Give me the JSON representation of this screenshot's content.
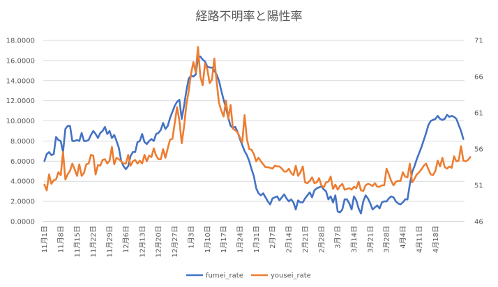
{
  "chart_data": {
    "type": "line",
    "title": "経路不明率と陽性率",
    "left_axis": {
      "min": 0,
      "max": 18,
      "step": 2,
      "tick_labels": [
        "0.0000",
        "2.0000",
        "4.0000",
        "6.0000",
        "8.0000",
        "10.0000",
        "12.0000",
        "14.0000",
        "16.0000",
        "18.0000"
      ]
    },
    "right_axis": {
      "min": 46,
      "max": 71,
      "step": 5,
      "tick_labels": [
        "46",
        "51",
        "56",
        "61",
        "66",
        "71"
      ]
    },
    "x_tick_labels": [
      "11月1日",
      "11月8日",
      "11月15日",
      "11月22日",
      "11月29日",
      "12月6日",
      "12月13日",
      "12月20日",
      "12月27日",
      "1月3日",
      "1月10日",
      "1月17日",
      "1月24日",
      "1月31日",
      "2月7日",
      "2月14日",
      "2月21日",
      "2月28日",
      "3月7日",
      "3月14日",
      "3月21日",
      "3月28日",
      "4月4日",
      "4月11日",
      "4月18日"
    ],
    "grid": true,
    "legend_position": "bottom",
    "series": [
      {
        "name": "fumei_rate",
        "axis": "left",
        "color": "#4472C4",
        "values": [
          6.0,
          6.7,
          6.9,
          6.6,
          6.7,
          8.4,
          8.1,
          8.0,
          6.9,
          9.2,
          9.5,
          9.5,
          8.0,
          8.0,
          8.1,
          8.0,
          8.8,
          8.0,
          8.0,
          8.1,
          8.6,
          9.0,
          8.7,
          8.3,
          8.8,
          9.0,
          9.4,
          8.7,
          9.0,
          8.3,
          8.6,
          8.0,
          7.3,
          6.0,
          5.5,
          5.2,
          5.5,
          6.5,
          6.9,
          6.9,
          7.9,
          8.0,
          8.7,
          7.9,
          7.7,
          8.0,
          8.2,
          8.0,
          8.7,
          8.8,
          9.1,
          9.8,
          9.2,
          9.5,
          10.3,
          10.9,
          11.5,
          11.9,
          12.1,
          10.2,
          11.5,
          13.0,
          14.2,
          14.5,
          14.4,
          14.6,
          16.3,
          16.4,
          16.1,
          15.9,
          15.4,
          15.3,
          15.3,
          15.0,
          14.6,
          14.0,
          13.0,
          12.1,
          11.3,
          10.3,
          9.5,
          9.3,
          9.4,
          8.9,
          8.2,
          7.6,
          7.0,
          6.6,
          6.0,
          5.2,
          4.5,
          3.3,
          2.8,
          2.6,
          2.8,
          2.4,
          2.0,
          1.7,
          2.3,
          2.4,
          2.5,
          2.1,
          2.4,
          2.7,
          2.3,
          2.0,
          2.2,
          1.9,
          1.2,
          2.1,
          1.9,
          1.9,
          2.3,
          2.6,
          2.9,
          2.4,
          3.1,
          3.3,
          3.4,
          3.5,
          3.2,
          3.0,
          2.2,
          2.5,
          1.9,
          2.6,
          1.0,
          0.9,
          1.2,
          2.2,
          2.2,
          1.8,
          1.2,
          2.5,
          2.1,
          1.3,
          0.8,
          2.0,
          2.6,
          2.3,
          1.8,
          1.2,
          1.4,
          1.6,
          1.3,
          1.9,
          2.0,
          2.0,
          2.3,
          2.5,
          2.4,
          2.0,
          1.8,
          1.7,
          1.9,
          2.2,
          2.2,
          3.7,
          4.9,
          5.5,
          6.2,
          6.8,
          7.4,
          8.1,
          8.8,
          9.6,
          10.0,
          10.1,
          10.2,
          10.5,
          10.2,
          10.1,
          10.2,
          10.6,
          10.4,
          10.5,
          10.4,
          10.2,
          9.6,
          9.0,
          8.2
        ]
      },
      {
        "name": "yousei_rate",
        "axis": "right",
        "color": "#ED7D31",
        "values": [
          51.1,
          50.3,
          52.5,
          51.2,
          51.7,
          51.8,
          52.8,
          52.4,
          55.6,
          51.8,
          52.5,
          53.0,
          54.0,
          53.2,
          52.3,
          53.9,
          52.3,
          52.7,
          53.9,
          54.0,
          55.2,
          55.1,
          52.5,
          53.8,
          53.7,
          54.5,
          54.6,
          54.0,
          54.4,
          56.3,
          53.9,
          54.8,
          54.6,
          54.3,
          54.0,
          54.0,
          55.2,
          53.7,
          54.3,
          54.5,
          54.0,
          54.4,
          54.0,
          55.2,
          54.3,
          55.1,
          54.9,
          56.1,
          55.1,
          54.6,
          54.6,
          56.0,
          54.8,
          56.1,
          57.3,
          57.4,
          59.6,
          61.8,
          59.9,
          56.8,
          59.1,
          62.1,
          64.0,
          66.4,
          68.0,
          66.6,
          70.1,
          66.0,
          64.8,
          67.8,
          67.0,
          65.1,
          65.6,
          68.5,
          65.3,
          62.4,
          61.3,
          60.5,
          62.7,
          60.2,
          62.1,
          58.8,
          58.6,
          58.3,
          57.6,
          56.9,
          60.7,
          57.4,
          56.0,
          55.9,
          55.3,
          54.3,
          54.8,
          54.3,
          53.9,
          53.5,
          53.5,
          53.4,
          53.3,
          53.7,
          53.6,
          53.6,
          53.3,
          52.9,
          52.9,
          53.3,
          52.7,
          52.4,
          53.7,
          52.3,
          52.8,
          53.6,
          51.4,
          51.3,
          51.6,
          52.1,
          51.3,
          51.4,
          52.0,
          51.0,
          50.7,
          51.4,
          51.5,
          52.2,
          50.5,
          51.1,
          50.4,
          50.9,
          51.2,
          50.4,
          50.5,
          50.6,
          50.4,
          50.8,
          50.6,
          51.5,
          50.3,
          50.2,
          51.0,
          51.2,
          51.1,
          50.9,
          51.3,
          50.8,
          50.8,
          51.0,
          51.0,
          53.3,
          52.5,
          51.6,
          51.0,
          51.5,
          51.6,
          51.6,
          52.8,
          52.2,
          52.1,
          54.0,
          51.4,
          51.9,
          52.5,
          52.8,
          53.2,
          53.7,
          54.0,
          53.2,
          52.5,
          52.4,
          53.0,
          54.4,
          53.6,
          54.8,
          53.5,
          53.3,
          53.6,
          53.4,
          55.0,
          54.3,
          54.4,
          56.4,
          54.4,
          54.3,
          54.5,
          54.9
        ]
      }
    ]
  }
}
